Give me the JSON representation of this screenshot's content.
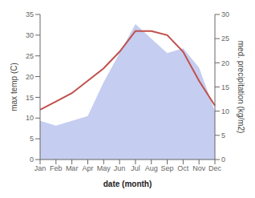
{
  "chart_data": {
    "type": "line",
    "categories": [
      "Jan",
      "Feb",
      "Mar",
      "Apr",
      "May",
      "Jun",
      "Jul",
      "Aug",
      "Sep",
      "Oct",
      "Nov",
      "Dec"
    ],
    "series": [
      {
        "type": "area",
        "color": "#c5cdf0",
        "axis": "y2",
        "values": [
          8,
          7,
          8,
          9,
          16,
          22,
          28,
          25,
          22,
          23,
          19,
          10
        ]
      },
      {
        "type": "line",
        "color": "#c0504d",
        "values": [
          12,
          14,
          16,
          19,
          22,
          26,
          31,
          31,
          30,
          26,
          19,
          13
        ]
      }
    ],
    "xlabel": "date (month)",
    "ylabel": "max temp (C)",
    "y2label": "med. precipitation (kg/m2)",
    "ylim": [
      0,
      35
    ],
    "yticks": [
      0,
      5,
      10,
      15,
      20,
      25,
      30,
      35
    ],
    "y2lim": [
      0,
      30
    ],
    "y2ticks": [
      0,
      5,
      10,
      15,
      20,
      25,
      30
    ],
    "grid": false
  }
}
